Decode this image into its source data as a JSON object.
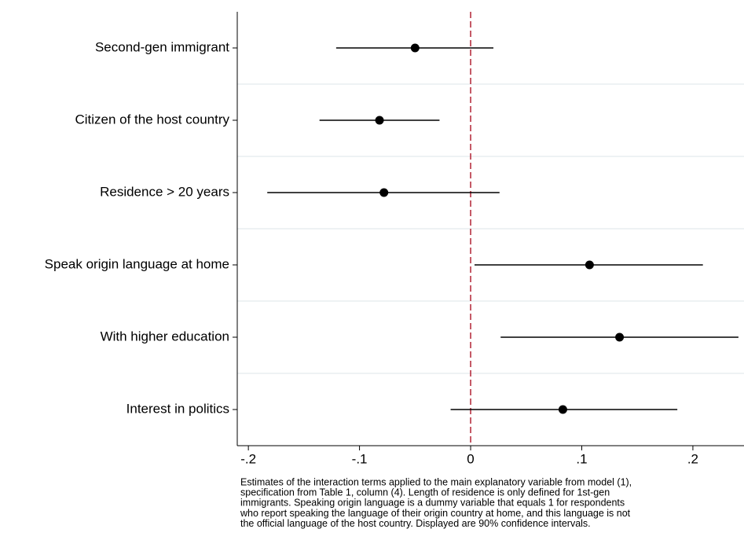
{
  "chart_data": {
    "type": "coefplot",
    "categories": [
      "Second-gen immigrant",
      "Citizen of the host country",
      "Residence > 20 years",
      "Speak origin language at home",
      "With higher education",
      "Interest in politics"
    ],
    "values": [
      -0.05,
      -0.082,
      -0.078,
      0.107,
      0.134,
      0.083
    ],
    "ci_low": [
      -0.121,
      -0.136,
      -0.183,
      0.0035,
      0.027,
      -0.018
    ],
    "ci_high": [
      0.0205,
      -0.028,
      0.026,
      0.209,
      0.241,
      0.186
    ],
    "color": "#000000",
    "xlim": [
      -0.21,
      0.246
    ],
    "xticks": [
      {
        "value": -0.2,
        "label": "-.2"
      },
      {
        "value": -0.1,
        "label": "-.1"
      },
      0,
      {
        "value": 0.1,
        "label": ".1"
      },
      {
        "value": 0.2,
        "label": ".2"
      }
    ],
    "reference_line": {
      "value": 0,
      "color": "#b22234"
    },
    "grid": true,
    "note": [
      "Estimates of the interaction terms applied to the main explanatory variable from model (1),",
      "specification from Table 1, column (4). Length of residence is only defined for 1st-gen",
      "immigrants. Speaking origin language is a dummy variable that equals 1 for respondents",
      "who report speaking the language of their origin country at home, and this language is not",
      "the official language of the host country. Displayed are 90% confidence intervals."
    ]
  }
}
